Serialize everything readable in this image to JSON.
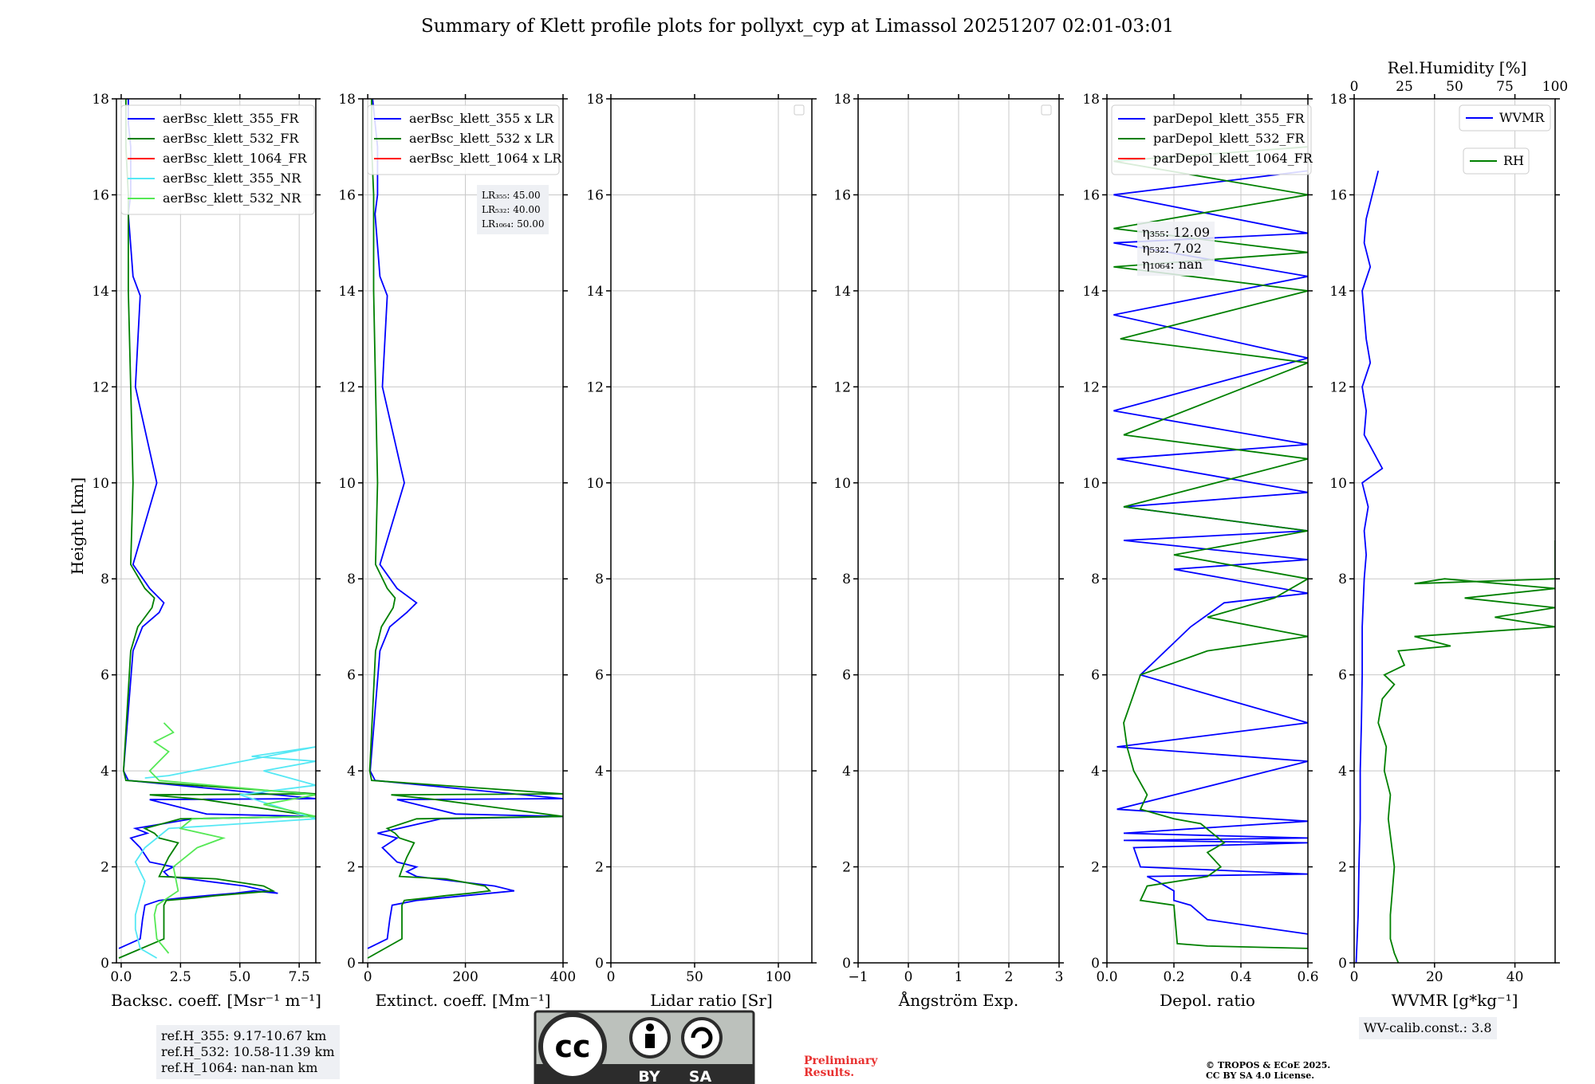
{
  "page_title": "Summary of Klett profile plots for pollyxt_cyp at Limassol 20251207 02:01-03:01",
  "ylabel": "Height [km]",
  "colors": {
    "c355": "#0000ff",
    "c532": "#008000",
    "c1064": "#ff0000",
    "nr355": "#55e8f4",
    "nr532": "#55e855",
    "grid": "#c8c8c8"
  },
  "chart_data": [
    {
      "type": "line",
      "id": "bsc",
      "xlabel": "Backsc. coeff. [Msr⁻¹ m⁻¹]",
      "xlim": [
        -0.2,
        8.2
      ],
      "ylim": [
        0,
        18
      ],
      "xticks": [
        0,
        2.5,
        5,
        7.5
      ],
      "xticklabels": [
        "0.0",
        "2.5",
        "5.0",
        "7.5"
      ],
      "legend_position": "top-left",
      "series": [
        {
          "name": "aerBsc_klett_355_FR",
          "color": "#0000ff",
          "x": [
            -0.1,
            0.8,
            0.9,
            1.0,
            1.6,
            2.5,
            3.6,
            4.8,
            5.6,
            6.6,
            5.2,
            2.0,
            1.8,
            2.2,
            1.2,
            0.8,
            0.4,
            1.1,
            0.6,
            3.0,
            8.2,
            3.6,
            1.2,
            8.2,
            0.3,
            0.1,
            0.5,
            0.9,
            1.6,
            1.8,
            1.2,
            0.5,
            1.5,
            0.6,
            0.8,
            0.5,
            0.3,
            0.4,
            0.4,
            0.3,
            0.3,
            0.2
          ],
          "y": [
            0.3,
            0.5,
            0.9,
            1.2,
            1.3,
            1.35,
            1.4,
            1.45,
            1.5,
            1.45,
            1.6,
            1.8,
            1.9,
            2.0,
            2.1,
            2.4,
            2.6,
            2.7,
            2.8,
            3.0,
            3.05,
            3.1,
            3.4,
            3.42,
            3.8,
            4.0,
            6.5,
            7.0,
            7.3,
            7.5,
            7.8,
            8.3,
            10.0,
            12.0,
            13.9,
            14.3,
            15.6,
            16.0,
            17.0,
            17.5,
            18.0,
            18.0
          ]
        },
        {
          "name": "aerBsc_klett_532_FR",
          "color": "#008000",
          "x": [
            -0.1,
            1.8,
            1.8,
            1.9,
            3.1,
            4.0,
            5.2,
            6.4,
            6.0,
            4.0,
            1.6,
            1.8,
            2.0,
            2.4,
            1.6,
            1.4,
            1.0,
            2.5,
            8.2,
            3.5,
            1.2,
            8.2,
            0.2,
            0.1,
            0.4,
            0.7,
            1.3,
            1.4,
            1.0,
            0.4,
            0.5,
            0.4,
            0.3,
            0.3,
            0.2,
            0.2
          ],
          "y": [
            0.1,
            0.5,
            1.2,
            1.3,
            1.35,
            1.4,
            1.45,
            1.5,
            1.6,
            1.75,
            1.8,
            2.0,
            2.2,
            2.5,
            2.6,
            2.7,
            2.8,
            3.0,
            3.05,
            3.4,
            3.5,
            3.52,
            3.8,
            4.0,
            6.5,
            7.0,
            7.4,
            7.6,
            7.8,
            8.3,
            10.0,
            12.0,
            14.0,
            16.0,
            17.0,
            18.0
          ]
        },
        {
          "name": "aerBsc_klett_1064_FR",
          "color": "#ff0000",
          "x": [],
          "y": []
        },
        {
          "name": "aerBsc_klett_355_NR",
          "color": "#55e8f4",
          "x": [
            1.5,
            0.8,
            0.6,
            0.6,
            1.0,
            0.6,
            1.0,
            2.0,
            8.2,
            5.0,
            8.2,
            6.0,
            8.2,
            5.5,
            8.2,
            2.0,
            1.0
          ],
          "y": [
            0.1,
            0.3,
            0.7,
            1.0,
            1.7,
            2.1,
            2.4,
            2.8,
            3.0,
            3.5,
            3.7,
            4.0,
            4.2,
            4.3,
            4.5,
            3.9,
            3.85
          ]
        },
        {
          "name": "aerBsc_klett_532_NR",
          "color": "#55e855",
          "x": [
            2.0,
            1.5,
            1.4,
            1.5,
            2.4,
            2.2,
            3.2,
            4.3,
            2.5,
            3.0,
            8.2,
            6.0,
            8.2,
            1.6,
            1.2,
            2.0,
            1.4,
            2.2,
            1.8
          ],
          "y": [
            0.2,
            0.5,
            1.0,
            1.2,
            1.5,
            2.0,
            2.4,
            2.6,
            2.8,
            3.0,
            3.05,
            3.3,
            3.5,
            3.8,
            4.0,
            4.4,
            4.6,
            4.8,
            5.0
          ]
        }
      ],
      "annotations": [
        "ref.H_355: 9.17-10.67 km",
        "ref.H_532: 10.58-11.39 km",
        "ref.H_1064: nan-nan km"
      ]
    },
    {
      "type": "line",
      "id": "ext",
      "xlabel": "Extinct. coeff. [Mm⁻¹]",
      "xlim": [
        -10,
        400
      ],
      "ylim": [
        0,
        18
      ],
      "xticks": [
        0,
        200,
        400
      ],
      "xticklabels": [
        "0",
        "200",
        "400"
      ],
      "legend_position": "top-left",
      "series": [
        {
          "name": "aerBsc_klett_355 x LR",
          "color": "#0000ff",
          "x": [
            0,
            40,
            45,
            50,
            100,
            150,
            200,
            250,
            300,
            260,
            100,
            80,
            100,
            60,
            30,
            60,
            20,
            150,
            400,
            180,
            60,
            400,
            15,
            5,
            25,
            45,
            80,
            100,
            60,
            25,
            75,
            30,
            40,
            25,
            15,
            20,
            20,
            15,
            10
          ],
          "y": [
            0.3,
            0.5,
            0.9,
            1.2,
            1.3,
            1.35,
            1.4,
            1.45,
            1.5,
            1.6,
            1.8,
            1.9,
            2.0,
            2.1,
            2.4,
            2.6,
            2.7,
            3.0,
            3.05,
            3.1,
            3.4,
            3.42,
            3.8,
            4.0,
            6.5,
            7.0,
            7.3,
            7.5,
            7.8,
            8.3,
            10.0,
            12.0,
            13.9,
            14.3,
            15.6,
            16.0,
            17.0,
            17.5,
            18.0
          ]
        },
        {
          "name": "aerBsc_klett_532 x LR",
          "color": "#008000",
          "x": [
            0,
            70,
            70,
            75,
            120,
            160,
            210,
            250,
            240,
            160,
            65,
            72,
            80,
            95,
            65,
            56,
            40,
            100,
            400,
            140,
            48,
            400,
            8,
            4,
            16,
            28,
            52,
            56,
            40,
            16,
            20,
            16,
            12,
            12,
            8,
            8
          ],
          "y": [
            0.1,
            0.5,
            1.2,
            1.3,
            1.35,
            1.4,
            1.45,
            1.5,
            1.6,
            1.75,
            1.8,
            2.0,
            2.2,
            2.5,
            2.6,
            2.7,
            2.8,
            3.0,
            3.05,
            3.4,
            3.5,
            3.52,
            3.8,
            4.0,
            6.5,
            7.0,
            7.4,
            7.6,
            7.8,
            8.3,
            10.0,
            12.0,
            14.0,
            16.0,
            17.0,
            18.0
          ]
        },
        {
          "name": "aerBsc_klett_1064 x LR",
          "color": "#ff0000",
          "x": [],
          "y": []
        }
      ],
      "lr_labels": [
        "LR₃₅₅: 45.00",
        "LR₅₃₂: 40.00",
        "LR₁₀₆₄: 50.00"
      ]
    },
    {
      "type": "line",
      "id": "lr",
      "xlabel": "Lidar ratio [Sr]",
      "xlim": [
        0,
        120
      ],
      "ylim": [
        0,
        18
      ],
      "xticks": [
        0,
        50,
        100
      ],
      "xticklabels": [
        "0",
        "50",
        "100"
      ],
      "series": []
    },
    {
      "type": "line",
      "id": "ang",
      "xlabel": "Ångström Exp.",
      "xlim": [
        -1,
        3
      ],
      "ylim": [
        0,
        18
      ],
      "xticks": [
        -1,
        0,
        1,
        2,
        3
      ],
      "xticklabels": [
        "−1",
        "0",
        "1",
        "2",
        "3"
      ],
      "series": []
    },
    {
      "type": "line",
      "id": "depol",
      "xlabel": "Depol. ratio",
      "xlim": [
        0,
        0.6
      ],
      "ylim": [
        0,
        18
      ],
      "xticks": [
        0,
        0.2,
        0.4,
        0.6
      ],
      "xticklabels": [
        "0.0",
        "0.2",
        "0.4",
        "0.6"
      ],
      "legend_position": "top-left",
      "series": [
        {
          "name": "parDepol_klett_355_FR",
          "color": "#0000ff",
          "x": [
            0.6,
            0.3,
            0.25,
            0.2,
            0.2,
            0.15,
            0.12,
            0.6,
            0.1,
            0.08,
            0.6,
            0.05,
            0.6,
            0.05,
            0.6,
            0.03,
            0.6,
            0.03,
            0.6,
            0.1,
            0.25,
            0.35,
            0.6,
            0.2,
            0.6,
            0.05,
            0.6,
            0.05,
            0.6,
            0.03,
            0.6,
            0.02,
            0.6,
            0.02,
            0.6,
            0.02,
            0.6,
            0.02,
            0.6
          ],
          "y": [
            0.6,
            0.9,
            1.2,
            1.3,
            1.5,
            1.7,
            1.8,
            1.85,
            2.0,
            2.4,
            2.5,
            2.55,
            2.6,
            2.7,
            2.95,
            3.2,
            4.2,
            4.5,
            5.0,
            6.0,
            7.0,
            7.5,
            7.7,
            8.2,
            8.4,
            8.8,
            9.0,
            9.5,
            9.8,
            10.5,
            10.8,
            11.5,
            12.6,
            13.5,
            14.3,
            15.0,
            15.2,
            16.0,
            16.5
          ]
        },
        {
          "name": "parDepol_klett_532_FR",
          "color": "#008000",
          "x": [
            0.6,
            0.3,
            0.21,
            0.2,
            0.1,
            0.12,
            0.3,
            0.34,
            0.3,
            0.35,
            0.28,
            0.2,
            0.1,
            0.12,
            0.08,
            0.06,
            0.05,
            0.1,
            0.3,
            0.6,
            0.3,
            0.5,
            0.6,
            0.2,
            0.6,
            0.05,
            0.6,
            0.05,
            0.6,
            0.04,
            0.6,
            0.02,
            0.6,
            0.02,
            0.6,
            0.02,
            0.6
          ],
          "y": [
            0.3,
            0.35,
            0.4,
            1.2,
            1.3,
            1.6,
            1.8,
            2.0,
            2.3,
            2.5,
            2.9,
            3.0,
            3.2,
            3.5,
            4.0,
            4.5,
            5.0,
            6.0,
            6.5,
            6.8,
            7.2,
            7.6,
            8.0,
            8.5,
            9.0,
            9.5,
            10.5,
            11.0,
            12.5,
            13.0,
            14.0,
            14.5,
            14.8,
            15.3,
            16.0,
            16.7,
            17.0
          ]
        },
        {
          "name": "parDepol_klett_1064_FR",
          "color": "#ff0000",
          "x": [],
          "y": []
        }
      ],
      "eta_labels": [
        "η₃₅₅: 12.09",
        "η₅₃₂: 7.02",
        "η₁₀₆₄: nan"
      ]
    },
    {
      "type": "line",
      "id": "wv",
      "xlabel": "WVMR [g*kg⁻¹]",
      "xlabel2": "Rel.Humidity [%]",
      "xlim": [
        0,
        50
      ],
      "ylim": [
        0,
        18
      ],
      "xticks": [
        0,
        20,
        40
      ],
      "xticklabels": [
        "0",
        "20",
        "40"
      ],
      "x2ticks": [
        0,
        25,
        50,
        75,
        100
      ],
      "x2ticklabels": [
        "0",
        "25",
        "50",
        "75",
        "100"
      ],
      "series": [
        {
          "name": "WVMR",
          "color": "#0000ff",
          "x": [
            0.5,
            1.0,
            1.2,
            1.5,
            1.5,
            1.8,
            2.0,
            2.0,
            2.5,
            3.0,
            2.5,
            3.5,
            2.0,
            7.0,
            2.5,
            3.0,
            2.0,
            4.0,
            3.0,
            2.0,
            4.0,
            2.5,
            3.0,
            6.0
          ],
          "y": [
            0,
            1.0,
            2.0,
            3.0,
            4.0,
            5.0,
            6.0,
            7.0,
            8.0,
            8.5,
            9.0,
            9.5,
            10.0,
            10.3,
            11.0,
            11.5,
            12.0,
            12.5,
            13.0,
            14.0,
            14.5,
            15.0,
            15.5,
            16.5
          ]
        },
        {
          "name": "RH",
          "color": "#008000",
          "x": [
            22,
            20,
            18,
            18,
            20,
            17,
            18,
            15,
            16,
            12,
            14,
            20,
            15,
            25,
            22,
            48,
            30,
            100,
            70,
            100,
            55,
            100,
            45,
            30,
            100,
            100
          ],
          "y": [
            0,
            0.2,
            0.5,
            1.0,
            2.0,
            3.0,
            3.5,
            4.0,
            4.5,
            5.0,
            5.5,
            5.8,
            6.0,
            6.2,
            6.5,
            6.6,
            6.8,
            7.0,
            7.2,
            7.4,
            7.6,
            7.8,
            8.0,
            7.9,
            8.0,
            8.8
          ]
        }
      ],
      "annotation": "WV-calib.const.: 3.8"
    }
  ],
  "footer": {
    "prelim_line1": "Preliminary",
    "prelim_line2": "Results.",
    "copy_line1": "© TROPOS & ECoE 2025.",
    "copy_line2": "CC BY SA 4.0 License.",
    "cc_text": "cc",
    "by_text": "BY",
    "sa_text": "SA"
  }
}
